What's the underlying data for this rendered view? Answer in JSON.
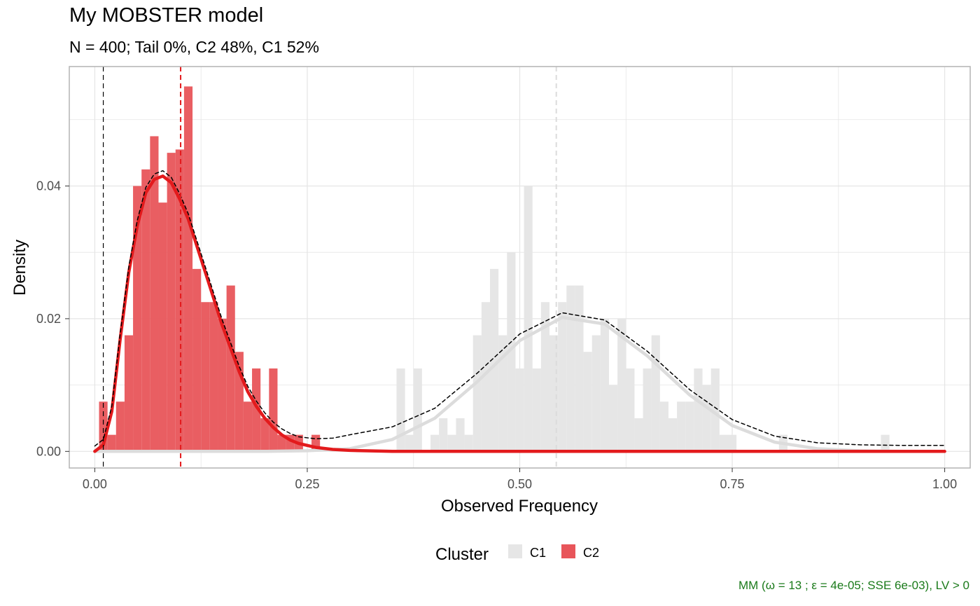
{
  "header": {
    "title": "My MOBSTER model",
    "subtitle": "N = 400; Tail 0%, C2 48%, C1 52%"
  },
  "caption": "MM (ω = 13 ; ε = 4e-05; SSE 6e-03), LV > 0",
  "legend": {
    "title": "Cluster",
    "items": [
      {
        "label": "C1",
        "color": "#e6e6e6"
      },
      {
        "label": "C2",
        "color": "#e8555a"
      }
    ]
  },
  "colors": {
    "c1": "#e6e6e6",
    "c2": "#e8555a",
    "c2_line": "#e31a1c",
    "c1_line": "#dcdcdc",
    "mixture_line": "#000000",
    "grid": "#e5e5e5",
    "panel_border": "#b3b3b3"
  },
  "chart_data": {
    "type": "bar",
    "xlabel": "Observed Frequency",
    "ylabel": "Density",
    "xlim": [
      -0.03,
      1.03
    ],
    "ylim": [
      -0.0025,
      0.058
    ],
    "x_ticks": [
      0.0,
      0.25,
      0.5,
      0.75,
      1.0
    ],
    "x_tick_labels": [
      "0.00",
      "0.25",
      "0.50",
      "0.75",
      "1.00"
    ],
    "y_ticks": [
      0.0,
      0.02,
      0.04
    ],
    "y_tick_labels": [
      "0.00",
      "0.02",
      "0.04"
    ],
    "grid": true,
    "legend_position": "bottom",
    "bin_width": 0.01,
    "series": [
      {
        "name": "C2",
        "type": "histogram",
        "bins": [
          {
            "x": 0.01,
            "y": 0.0075
          },
          {
            "x": 0.02,
            "y": 0.0025
          },
          {
            "x": 0.03,
            "y": 0.0075
          },
          {
            "x": 0.04,
            "y": 0.0175
          },
          {
            "x": 0.05,
            "y": 0.04
          },
          {
            "x": 0.06,
            "y": 0.0425
          },
          {
            "x": 0.07,
            "y": 0.0475
          },
          {
            "x": 0.08,
            "y": 0.0375
          },
          {
            "x": 0.09,
            "y": 0.045
          },
          {
            "x": 0.1,
            "y": 0.0455
          },
          {
            "x": 0.11,
            "y": 0.055
          },
          {
            "x": 0.12,
            "y": 0.0275
          },
          {
            "x": 0.13,
            "y": 0.0225
          },
          {
            "x": 0.14,
            "y": 0.0225
          },
          {
            "x": 0.15,
            "y": 0.02
          },
          {
            "x": 0.16,
            "y": 0.025
          },
          {
            "x": 0.17,
            "y": 0.015
          },
          {
            "x": 0.18,
            "y": 0.0075
          },
          {
            "x": 0.19,
            "y": 0.0125
          },
          {
            "x": 0.2,
            "y": 0.005
          },
          {
            "x": 0.21,
            "y": 0.0125
          },
          {
            "x": 0.22,
            "y": 0.0025
          },
          {
            "x": 0.23,
            "y": 0.0025
          },
          {
            "x": 0.24,
            "y": 0.0025
          },
          {
            "x": 0.26,
            "y": 0.0025
          }
        ]
      },
      {
        "name": "C1",
        "type": "histogram",
        "bins": [
          {
            "x": 0.36,
            "y": 0.0125
          },
          {
            "x": 0.37,
            "y": 0.0025
          },
          {
            "x": 0.38,
            "y": 0.0125
          },
          {
            "x": 0.4,
            "y": 0.0025
          },
          {
            "x": 0.41,
            "y": 0.005
          },
          {
            "x": 0.42,
            "y": 0.0025
          },
          {
            "x": 0.43,
            "y": 0.005
          },
          {
            "x": 0.44,
            "y": 0.0025
          },
          {
            "x": 0.45,
            "y": 0.0175
          },
          {
            "x": 0.46,
            "y": 0.0225
          },
          {
            "x": 0.47,
            "y": 0.0275
          },
          {
            "x": 0.48,
            "y": 0.0175
          },
          {
            "x": 0.49,
            "y": 0.03
          },
          {
            "x": 0.5,
            "y": 0.0125
          },
          {
            "x": 0.51,
            "y": 0.04
          },
          {
            "x": 0.52,
            "y": 0.0125
          },
          {
            "x": 0.53,
            "y": 0.0225
          },
          {
            "x": 0.54,
            "y": 0.0175
          },
          {
            "x": 0.55,
            "y": 0.0225
          },
          {
            "x": 0.56,
            "y": 0.025
          },
          {
            "x": 0.57,
            "y": 0.025
          },
          {
            "x": 0.58,
            "y": 0.015
          },
          {
            "x": 0.59,
            "y": 0.0175
          },
          {
            "x": 0.6,
            "y": 0.02
          },
          {
            "x": 0.61,
            "y": 0.01
          },
          {
            "x": 0.62,
            "y": 0.02
          },
          {
            "x": 0.63,
            "y": 0.0125
          },
          {
            "x": 0.64,
            "y": 0.005
          },
          {
            "x": 0.65,
            "y": 0.0125
          },
          {
            "x": 0.66,
            "y": 0.0175
          },
          {
            "x": 0.67,
            "y": 0.0075
          },
          {
            "x": 0.68,
            "y": 0.005
          },
          {
            "x": 0.69,
            "y": 0.0075
          },
          {
            "x": 0.7,
            "y": 0.0075
          },
          {
            "x": 0.71,
            "y": 0.0125
          },
          {
            "x": 0.72,
            "y": 0.01
          },
          {
            "x": 0.73,
            "y": 0.0125
          },
          {
            "x": 0.74,
            "y": 0.0025
          },
          {
            "x": 0.75,
            "y": 0.0025
          },
          {
            "x": 0.81,
            "y": 0.0025
          },
          {
            "x": 0.93,
            "y": 0.0025
          }
        ]
      }
    ],
    "fitted_density": {
      "C2": {
        "color": "#e31a1c",
        "points": [
          [
            0.0,
            0.0
          ],
          [
            0.01,
            0.001
          ],
          [
            0.02,
            0.006
          ],
          [
            0.03,
            0.017
          ],
          [
            0.04,
            0.027
          ],
          [
            0.05,
            0.034
          ],
          [
            0.06,
            0.039
          ],
          [
            0.07,
            0.041
          ],
          [
            0.08,
            0.0415
          ],
          [
            0.09,
            0.0405
          ],
          [
            0.1,
            0.038
          ],
          [
            0.11,
            0.035
          ],
          [
            0.12,
            0.031
          ],
          [
            0.13,
            0.027
          ],
          [
            0.14,
            0.023
          ],
          [
            0.15,
            0.019
          ],
          [
            0.16,
            0.0155
          ],
          [
            0.17,
            0.012
          ],
          [
            0.18,
            0.009
          ],
          [
            0.19,
            0.0068
          ],
          [
            0.2,
            0.005
          ],
          [
            0.21,
            0.0036
          ],
          [
            0.22,
            0.0025
          ],
          [
            0.23,
            0.0017
          ],
          [
            0.24,
            0.0012
          ],
          [
            0.26,
            0.0006
          ],
          [
            0.28,
            0.0003
          ],
          [
            0.3,
            0.00015
          ],
          [
            0.35,
            0.0
          ],
          [
            1.0,
            0.0
          ]
        ]
      },
      "C1": {
        "color": "#dcdcdc",
        "points": [
          [
            0.0,
            0.0
          ],
          [
            0.05,
            0.0
          ],
          [
            0.1,
            0.0
          ],
          [
            0.15,
            0.0
          ],
          [
            0.2,
            0.0
          ],
          [
            0.25,
            0.0001
          ],
          [
            0.3,
            0.0004
          ],
          [
            0.35,
            0.0018
          ],
          [
            0.4,
            0.005
          ],
          [
            0.45,
            0.0105
          ],
          [
            0.5,
            0.0167
          ],
          [
            0.55,
            0.0202
          ],
          [
            0.6,
            0.0192
          ],
          [
            0.65,
            0.0144
          ],
          [
            0.7,
            0.0085
          ],
          [
            0.75,
            0.0039
          ],
          [
            0.8,
            0.0014
          ],
          [
            0.85,
            0.0004
          ],
          [
            0.9,
            0.0001
          ],
          [
            0.95,
            0.0
          ],
          [
            1.0,
            0.0
          ]
        ]
      },
      "mixture": {
        "color": "#000000",
        "points": [
          [
            0.0,
            0.0008
          ],
          [
            0.01,
            0.0018
          ],
          [
            0.02,
            0.0068
          ],
          [
            0.03,
            0.0178
          ],
          [
            0.04,
            0.0278
          ],
          [
            0.05,
            0.0348
          ],
          [
            0.06,
            0.0398
          ],
          [
            0.07,
            0.0418
          ],
          [
            0.08,
            0.0423
          ],
          [
            0.09,
            0.0413
          ],
          [
            0.1,
            0.0388
          ],
          [
            0.11,
            0.0358
          ],
          [
            0.12,
            0.0318
          ],
          [
            0.13,
            0.0278
          ],
          [
            0.14,
            0.0238
          ],
          [
            0.15,
            0.0198
          ],
          [
            0.16,
            0.0163
          ],
          [
            0.17,
            0.0128
          ],
          [
            0.18,
            0.0098
          ],
          [
            0.19,
            0.0076
          ],
          [
            0.2,
            0.0058
          ],
          [
            0.21,
            0.0044
          ],
          [
            0.22,
            0.0034
          ],
          [
            0.23,
            0.0027
          ],
          [
            0.24,
            0.0022
          ],
          [
            0.26,
            0.0019
          ],
          [
            0.28,
            0.002
          ],
          [
            0.3,
            0.0025
          ],
          [
            0.35,
            0.0037
          ],
          [
            0.4,
            0.0065
          ],
          [
            0.45,
            0.0118
          ],
          [
            0.5,
            0.0177
          ],
          [
            0.55,
            0.0209
          ],
          [
            0.6,
            0.0198
          ],
          [
            0.65,
            0.0151
          ],
          [
            0.7,
            0.0093
          ],
          [
            0.75,
            0.0048
          ],
          [
            0.8,
            0.0023
          ],
          [
            0.85,
            0.0013
          ],
          [
            0.9,
            0.001
          ],
          [
            0.95,
            0.0009
          ],
          [
            1.0,
            0.0009
          ]
        ]
      }
    },
    "reference_lines": [
      {
        "x": 0.01,
        "color": "#000000",
        "style": "dashed"
      },
      {
        "x": 0.101,
        "color": "#e31a1c",
        "style": "dashed"
      },
      {
        "x": 0.543,
        "color": "#dcdcdc",
        "style": "dashed"
      }
    ]
  }
}
